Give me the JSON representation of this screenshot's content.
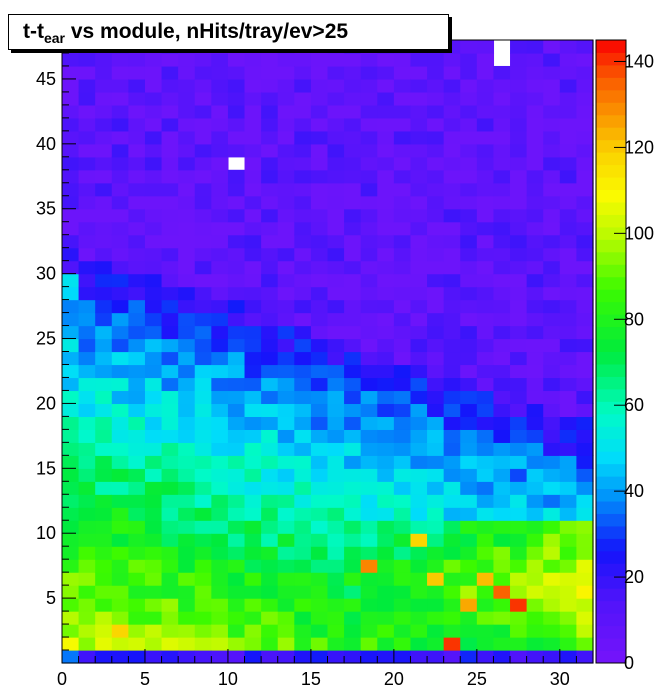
{
  "chart_data": {
    "type": "heatmap",
    "title": {
      "main": "t-t",
      "subscript": "ear",
      "rest": " vs module, nHits/tray/ev>25"
    },
    "xlabel": "",
    "ylabel": "",
    "x_bins": 32,
    "y_bins": 48,
    "xlim": [
      0,
      32
    ],
    "ylim": [
      0,
      48
    ],
    "x_ticks": [
      0,
      5,
      10,
      15,
      20,
      25,
      30
    ],
    "y_ticks": [
      5,
      10,
      15,
      20,
      25,
      30,
      35,
      40,
      45
    ],
    "colorbar": {
      "range": [
        0,
        145
      ],
      "ticks": [
        0,
        20,
        40,
        60,
        80,
        100,
        120,
        140
      ]
    },
    "empty_bins": [
      [
        26,
        46
      ],
      [
        26,
        47
      ],
      [
        10,
        38
      ]
    ],
    "hot_spots": [
      {
        "x": 3,
        "y": 2,
        "value": 118
      },
      {
        "x": 18,
        "y": 7,
        "value": 130
      },
      {
        "x": 21,
        "y": 9,
        "value": 118
      },
      {
        "x": 23,
        "y": 1,
        "value": 140
      },
      {
        "x": 24,
        "y": 4,
        "value": 125
      },
      {
        "x": 25,
        "y": 6,
        "value": 122
      },
      {
        "x": 26,
        "y": 5,
        "value": 135
      },
      {
        "x": 27,
        "y": 4,
        "value": 140
      },
      {
        "x": 22,
        "y": 6,
        "value": 120
      }
    ]
  }
}
